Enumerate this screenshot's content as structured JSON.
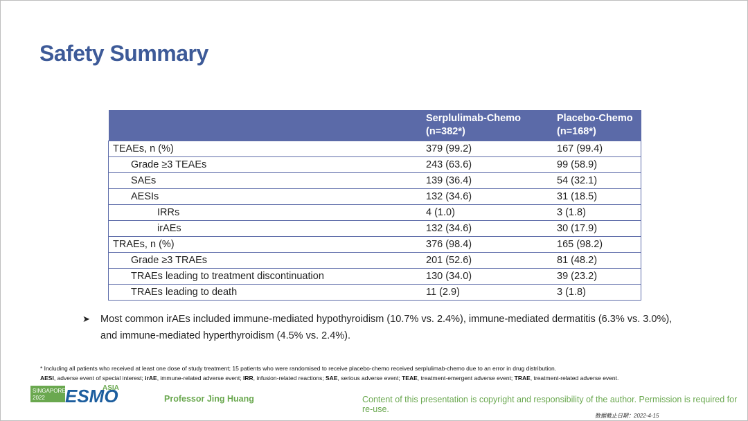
{
  "title": "Safety Summary",
  "table": {
    "header": [
      {
        "name": "Serplulimab-Chemo",
        "n": "(n=382*)"
      },
      {
        "name": "Placebo-Chemo",
        "n": "(n=168*)"
      }
    ],
    "rows": [
      [
        "TEAEs, n (%)",
        "379 (99.2)",
        "167 (99.4)"
      ],
      [
        "Grade ≥3 TEAEs",
        "243 (63.6)",
        "99 (58.9)"
      ],
      [
        "SAEs",
        "139 (36.4)",
        "54 (32.1)"
      ],
      [
        "AESIs",
        "132 (34.6)",
        "31 (18.5)"
      ],
      [
        "IRRs",
        "4 (1.0)",
        "3 (1.8)"
      ],
      [
        "irAEs",
        "132 (34.6)",
        "30 (17.9)"
      ],
      [
        "TRAEs, n (%)",
        "376 (98.4)",
        "165 (98.2)"
      ],
      [
        "Grade ≥3 TRAEs",
        "201 (52.6)",
        "81 (48.2)"
      ],
      [
        "TRAEs leading to treatment discontinuation",
        "130 (34.0)",
        "39 (23.2)"
      ],
      [
        "TRAEs leading to death",
        "11 (2.9)",
        "3 (1.8)"
      ]
    ]
  },
  "bullet": "Most common irAEs included immune-mediated hypothyroidism (10.7% vs. 2.4%), immune-mediated dermatitis (6.3% vs. 3.0%), and immune-mediated hyperthyroidism (4.5% vs. 2.4%).",
  "footnotes": {
    "note": "* Including all patients who received at least one dose of study treatment; 15 patients who were randomised to receive placebo-chemo received serplulimab-chemo due to an error in drug distribution.",
    "abbreviations": [
      {
        "term": "AESI",
        "text": ", adverse event of special interest; "
      },
      {
        "term": "irAE",
        "text": ", immune-related adverse event; "
      },
      {
        "term": "IRR",
        "text": ", infusion-related reactions; "
      },
      {
        "term": "SAE",
        "text": ", serious adverse event; "
      },
      {
        "term": "TEAE",
        "text": ", treatment-emergent adverse event; "
      },
      {
        "term": "TRAE",
        "text": ", treatment-related adverse event."
      }
    ]
  },
  "footer": {
    "logo": {
      "location": "SINGAPORE",
      "year": "2022",
      "brand": "ESMO",
      "region": "ASIA"
    },
    "presenter": "Professor Jing Huang",
    "copyright": "Content of this presentation is copyright and responsibility of the author. Permission is required for re-use.",
    "date_stamp": "数据截止日期：2022-4-15"
  }
}
